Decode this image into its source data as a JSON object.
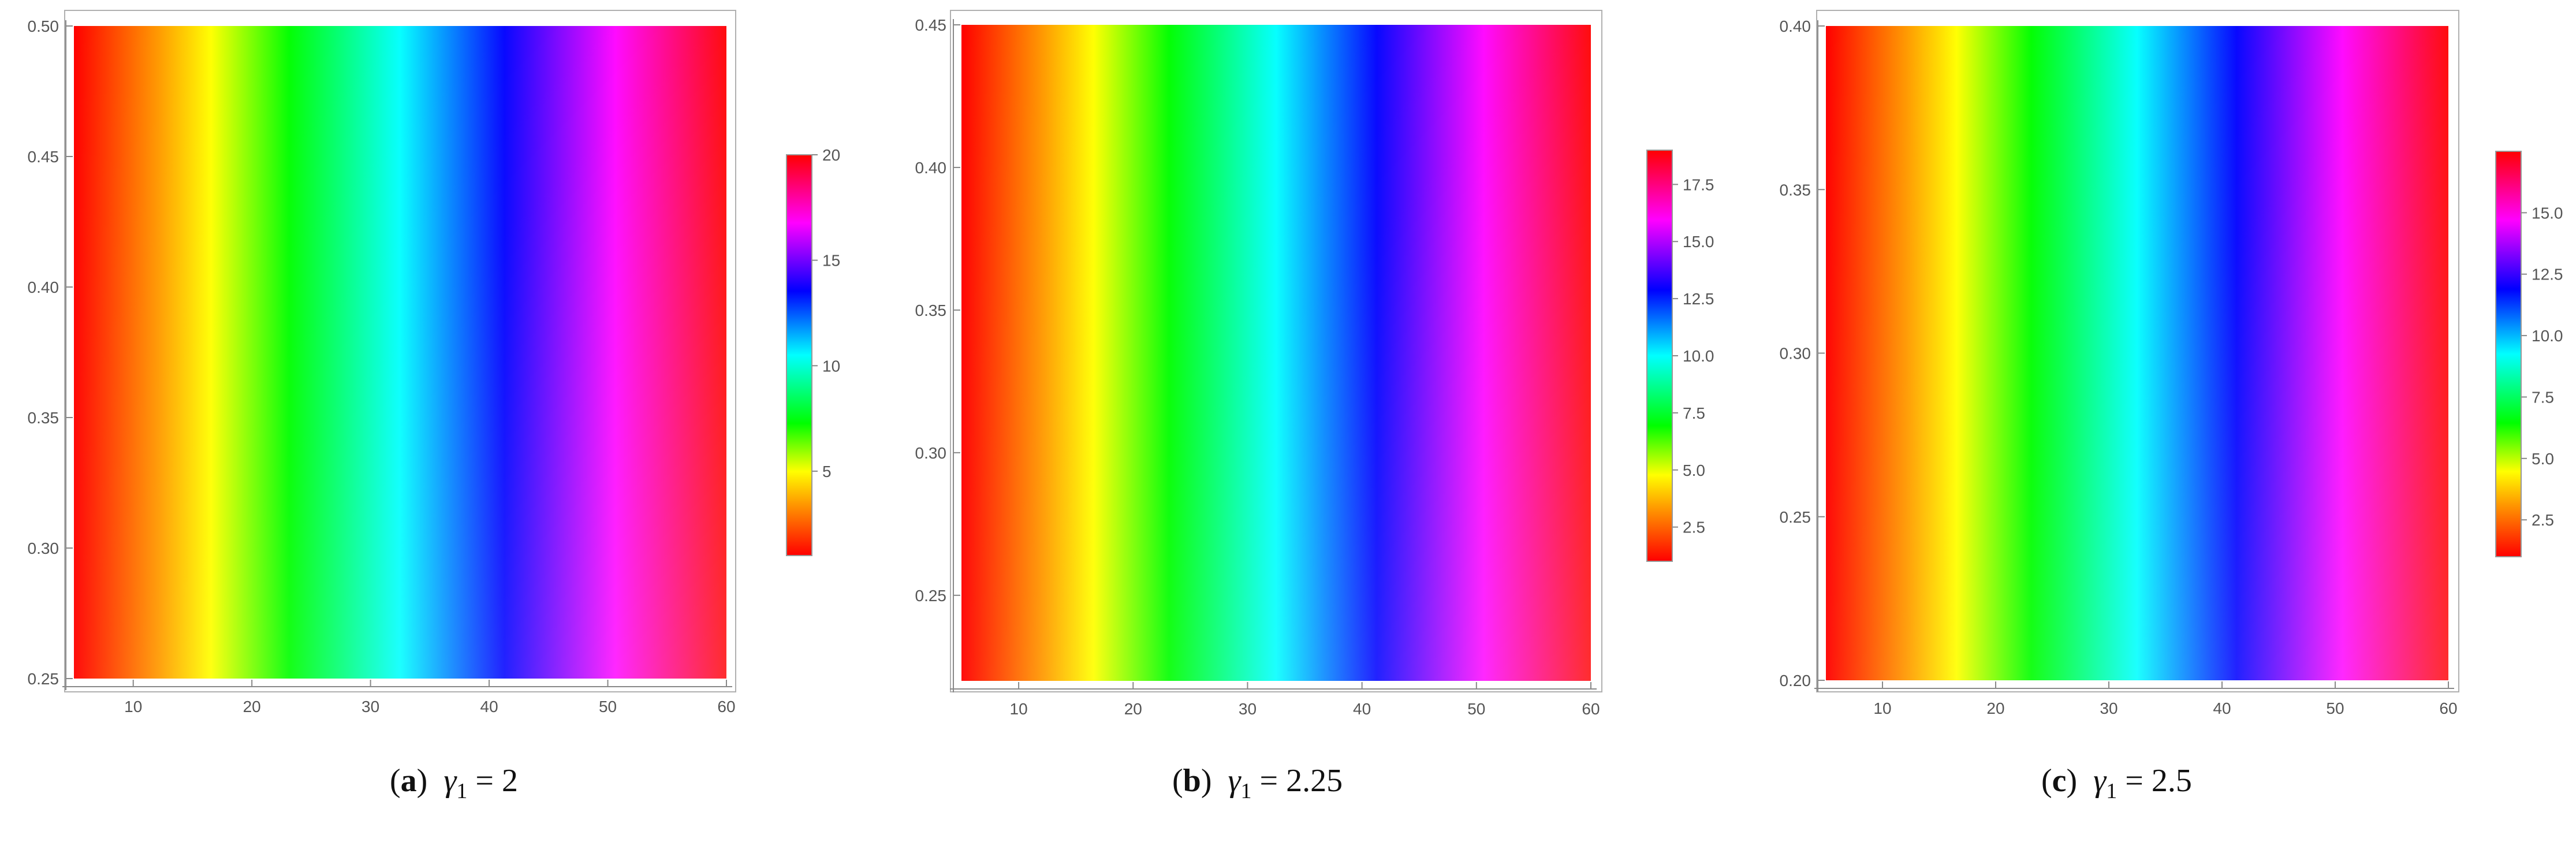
{
  "chart_data": [
    {
      "type": "heatmap",
      "caption": {
        "letter": "a",
        "expr": "γ",
        "sub": "1",
        "rhs": " = 2"
      },
      "x": {
        "range": [
          5,
          60
        ],
        "ticks": [
          10,
          20,
          30,
          40,
          50,
          60
        ]
      },
      "y": {
        "range": [
          0.25,
          0.5
        ],
        "ticks": [
          "0.25",
          "0.30",
          "0.35",
          "0.40",
          "0.45",
          "0.50"
        ]
      },
      "colorbar": {
        "range": [
          1,
          20
        ],
        "ticks": [
          "5",
          "10",
          "15",
          "20"
        ]
      },
      "colormap": "hue (red → yellow → green → cyan → blue → magenta → red)",
      "value_increases_with": "x"
    },
    {
      "type": "heatmap",
      "caption": {
        "letter": "b",
        "expr": "γ",
        "sub": "1",
        "rhs": " = 2.25"
      },
      "x": {
        "range": [
          5,
          60
        ],
        "ticks": [
          10,
          20,
          30,
          40,
          50,
          60
        ]
      },
      "y": {
        "range": [
          0.22,
          0.45
        ],
        "ticks": [
          "0.25",
          "0.30",
          "0.35",
          "0.40",
          "0.45"
        ]
      },
      "colorbar": {
        "range": [
          1,
          19
        ],
        "ticks": [
          "2.5",
          "5.0",
          "7.5",
          "10.0",
          "12.5",
          "15.0",
          "17.5"
        ]
      },
      "colormap": "hue (red → yellow → green → cyan → blue → magenta → red)",
      "value_increases_with": "x"
    },
    {
      "type": "heatmap",
      "caption": {
        "letter": "c",
        "expr": "γ",
        "sub": "1",
        "rhs": " = 2.5"
      },
      "x": {
        "range": [
          5,
          60
        ],
        "ticks": [
          10,
          20,
          30,
          40,
          50,
          60
        ]
      },
      "y": {
        "range": [
          0.2,
          0.4
        ],
        "ticks": [
          "0.20",
          "0.25",
          "0.30",
          "0.35",
          "0.40"
        ]
      },
      "colorbar": {
        "range": [
          1,
          17.5
        ],
        "ticks": [
          "2.5",
          "5.0",
          "7.5",
          "10.0",
          "12.5",
          "15.0"
        ]
      },
      "colormap": "hue (red → yellow → green → cyan → blue → magenta → red)",
      "value_increases_with": "x"
    }
  ]
}
